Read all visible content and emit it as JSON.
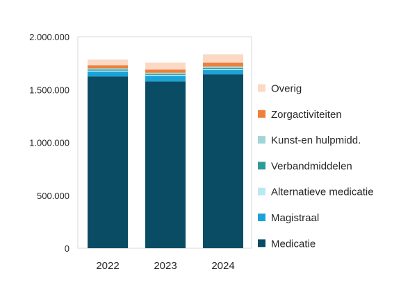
{
  "chart_data": {
    "type": "bar",
    "stacked": true,
    "categories": [
      "2022",
      "2023",
      "2024"
    ],
    "series": [
      {
        "name": "Medicatie",
        "color": "#0a4c63",
        "values": [
          1625000,
          1578000,
          1645000
        ]
      },
      {
        "name": "Magistraal",
        "color": "#1aa3d8",
        "values": [
          45000,
          52000,
          40000
        ]
      },
      {
        "name": "Alternatieve medicatie",
        "color": "#b9e9f5",
        "values": [
          10000,
          10000,
          10000
        ]
      },
      {
        "name": "Verbandmiddelen",
        "color": "#2e9b9a",
        "values": [
          10000,
          8000,
          11000
        ]
      },
      {
        "name": "Kunst-en hulpmidd.",
        "color": "#9fd6d7",
        "values": [
          12000,
          12000,
          13000
        ]
      },
      {
        "name": "Zorgactiviteiten",
        "color": "#ef7f3c",
        "values": [
          28000,
          30000,
          35000
        ]
      },
      {
        "name": "Overig",
        "color": "#fbd9c5",
        "values": [
          55000,
          65000,
          80000
        ]
      }
    ],
    "ylim": [
      0,
      2000000
    ],
    "yticks": [
      0,
      500000,
      1000000,
      1500000,
      2000000
    ],
    "ytick_labels": [
      "0",
      "500.000",
      "1.000.000",
      "1.500.000",
      "2.000.000"
    ],
    "legend_position": "right",
    "legend_order": [
      "Overig",
      "Zorgactiviteiten",
      "Kunst-en hulpmidd.",
      "Verbandmiddelen",
      "Alternatieve medicatie",
      "Magistraal",
      "Medicatie"
    ],
    "grid": false,
    "title": "",
    "xlabel": "",
    "ylabel": ""
  }
}
